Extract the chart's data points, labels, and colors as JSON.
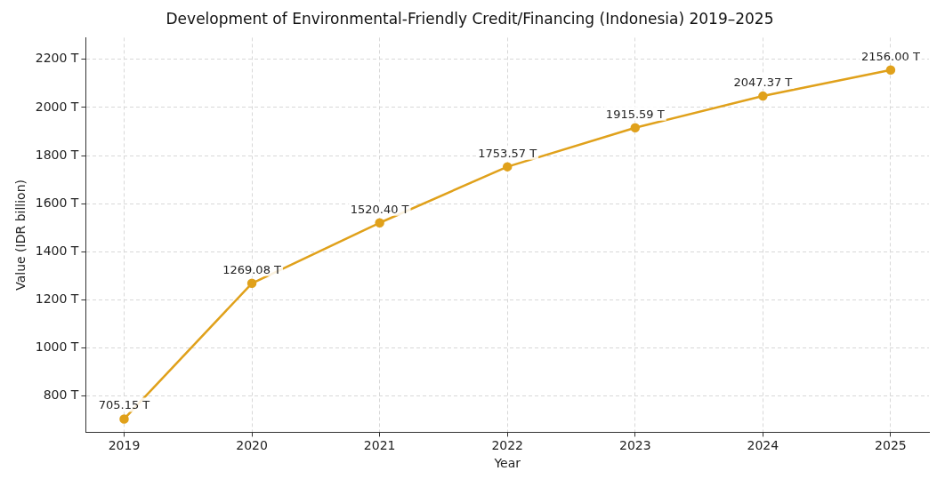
{
  "chart_data": {
    "type": "line",
    "title": "Development of Environmental-Friendly Credit/Financing (Indonesia) 2019–2025",
    "xlabel": "Year",
    "ylabel": "Value (IDR billion)",
    "x": [
      2019,
      2020,
      2021,
      2022,
      2023,
      2024,
      2025
    ],
    "series": [
      {
        "color": "#e0a11b",
        "values": [
          705.15,
          1269.08,
          1520.4,
          1753.57,
          1915.59,
          2047.37,
          2156.0
        ],
        "value_labels": [
          "705.15 T",
          "1269.08 T",
          "1520.40 T",
          "1753.57 T",
          "1915.59 T",
          "2047.37 T",
          "2156.00 T"
        ]
      }
    ],
    "xlim": [
      2018.7,
      2025.3
    ],
    "xticks": [
      2019,
      2020,
      2021,
      2022,
      2023,
      2024,
      2025
    ],
    "ylim": [
      650,
      2290
    ],
    "yticks": [
      {
        "value": 800,
        "label": "800 T"
      },
      {
        "value": 1000,
        "label": "1000 T"
      },
      {
        "value": 1200,
        "label": "1200 T"
      },
      {
        "value": 1400,
        "label": "1400 T"
      },
      {
        "value": 1600,
        "label": "1600 T"
      },
      {
        "value": 1800,
        "label": "1800 T"
      },
      {
        "value": 2000,
        "label": "2000 T"
      },
      {
        "value": 2200,
        "label": "2200 T"
      }
    ],
    "grid": true,
    "marker": "circle",
    "line_style": "solid",
    "legend": false
  }
}
